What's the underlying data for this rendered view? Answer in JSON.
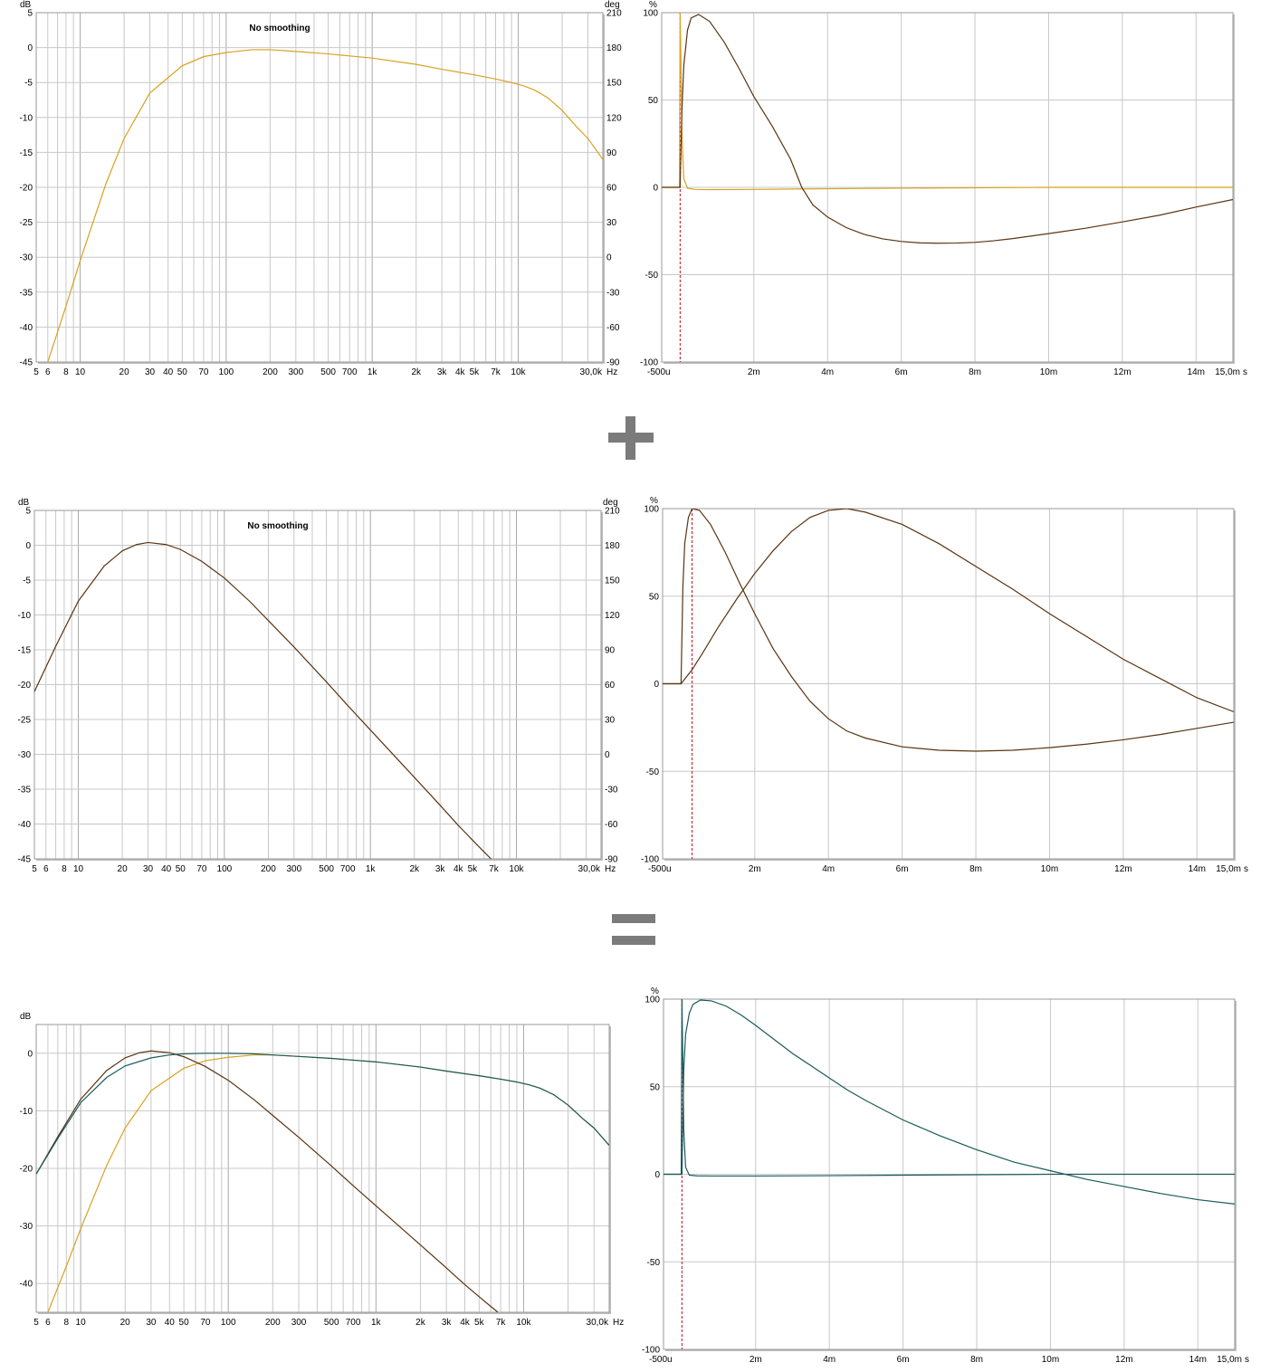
{
  "colors": {
    "gold": "#d8a21e",
    "brown": "#5a3412",
    "teal": "#1a5a5a",
    "marker": "#c0101a",
    "grid": "#c8c8c8",
    "operator": "#7b7b7b"
  },
  "operators": [
    "plus-sign",
    "equals-sign"
  ],
  "chart_data": [
    {
      "id": "freq-1",
      "type": "line",
      "xscale": "log",
      "overlay_text": "No smoothing",
      "xlabel_unit": "Hz",
      "ylabel_left": "dB",
      "ylabel_right": "deg",
      "xlim": [
        5,
        38000
      ],
      "ylim": [
        -45,
        5
      ],
      "y2lim": [
        -90,
        210
      ],
      "xticks": [
        "5",
        "6",
        "8",
        "10",
        "20",
        "30",
        "40",
        "50",
        "70",
        "100",
        "200",
        "300",
        "500",
        "700",
        "1k",
        "2k",
        "3k",
        "4k",
        "5k",
        "7k",
        "10k",
        "30,0k"
      ],
      "yticks": [
        "5",
        "0",
        "-5",
        "-10",
        "-15",
        "-20",
        "-25",
        "-30",
        "-35",
        "-40",
        "-45"
      ],
      "y2ticks": [
        "210",
        "180",
        "150",
        "120",
        "90",
        "60",
        "30",
        "0",
        "-30",
        "-60",
        "-90"
      ],
      "series": [
        {
          "color": "gold",
          "x": [
            6,
            8,
            10,
            15,
            20,
            30,
            50,
            70,
            100,
            150,
            200,
            300,
            500,
            1000,
            2000,
            3000,
            5000,
            7000,
            9000,
            11000,
            13000,
            16000,
            20000,
            25000,
            30000,
            38000
          ],
          "y": [
            -45,
            -37,
            -30.5,
            -19.5,
            -13,
            -6.5,
            -2.6,
            -1.3,
            -0.7,
            -0.3,
            -0.3,
            -0.55,
            -0.9,
            -1.5,
            -2.4,
            -3.1,
            -3.9,
            -4.5,
            -5.0,
            -5.5,
            -6.1,
            -7.2,
            -9,
            -11.3,
            -13,
            -16
          ]
        }
      ]
    },
    {
      "id": "impulse-1",
      "type": "line",
      "xlabel_unit": "s",
      "ylabel": "%",
      "xlim": [
        -0.5,
        15.0
      ],
      "ylim": [
        -100,
        100
      ],
      "xticks": [
        "-500u",
        "2m",
        "4m",
        "6m",
        "8m",
        "10m",
        "12m",
        "14m",
        "15,0m"
      ],
      "yticks": [
        "100",
        "50",
        "0",
        "-50",
        "-100"
      ],
      "marker_ms": 0,
      "series": [
        {
          "color": "gold",
          "x": [
            -0.5,
            -0.02,
            0,
            0.02,
            0.05,
            0.1,
            0.2,
            0.4,
            0.8,
            2,
            4,
            6,
            10,
            15
          ],
          "y": [
            0,
            0,
            100,
            75,
            30,
            5,
            -0.5,
            -1.2,
            -1.3,
            -1.2,
            -0.8,
            -0.5,
            0,
            0
          ]
        },
        {
          "color": "brown",
          "x": [
            -0.5,
            0,
            0.05,
            0.1,
            0.2,
            0.3,
            0.5,
            0.8,
            1.2,
            1.6,
            2,
            2.5,
            3,
            3.3,
            3.6,
            4,
            4.5,
            5,
            5.5,
            6,
            6.5,
            7,
            7.5,
            8,
            8.5,
            9,
            10,
            11,
            12,
            13,
            14,
            15
          ],
          "y": [
            0,
            0,
            45,
            70,
            90,
            97,
            99,
            95,
            83,
            68,
            52,
            35,
            16,
            0,
            -10,
            -17,
            -23,
            -27,
            -29.5,
            -31,
            -31.8,
            -32,
            -31.9,
            -31.5,
            -30.6,
            -29.4,
            -26.5,
            -23.4,
            -19.8,
            -16,
            -11.3,
            -7
          ]
        }
      ]
    },
    {
      "id": "freq-2",
      "type": "line",
      "xscale": "log",
      "overlay_text": "No smoothing",
      "xlabel_unit": "Hz",
      "ylabel_left": "dB",
      "ylabel_right": "deg",
      "xlim": [
        5,
        38000
      ],
      "ylim": [
        -45,
        5
      ],
      "y2lim": [
        -90,
        210
      ],
      "xticks": [
        "5",
        "6",
        "8",
        "10",
        "20",
        "30",
        "40",
        "50",
        "70",
        "100",
        "200",
        "300",
        "500",
        "700",
        "1k",
        "2k",
        "3k",
        "4k",
        "5k",
        "7k",
        "10k",
        "30,0k"
      ],
      "yticks": [
        "5",
        "0",
        "-5",
        "-10",
        "-15",
        "-20",
        "-25",
        "-30",
        "-35",
        "-40",
        "-45"
      ],
      "y2ticks": [
        "210",
        "180",
        "150",
        "120",
        "90",
        "60",
        "30",
        "0",
        "-30",
        "-60",
        "-90"
      ],
      "series": [
        {
          "color": "brown",
          "x": [
            5,
            7,
            10,
            15,
            20,
            25,
            30,
            40,
            50,
            70,
            100,
            150,
            200,
            300,
            500,
            700,
            1000,
            2000,
            3000,
            4000,
            5000,
            6000,
            6700
          ],
          "y": [
            -21,
            -14.5,
            -8,
            -3,
            -0.8,
            0.1,
            0.4,
            0.1,
            -0.6,
            -2.3,
            -4.7,
            -8.1,
            -10.8,
            -14.6,
            -19.6,
            -23,
            -26.5,
            -33.3,
            -37.3,
            -40.2,
            -42.3,
            -44,
            -45
          ]
        }
      ]
    },
    {
      "id": "impulse-2",
      "type": "line",
      "xlabel_unit": "s",
      "ylabel": "%",
      "xlim": [
        -0.5,
        15.0
      ],
      "ylim": [
        -100,
        100
      ],
      "xticks": [
        "-500u",
        "2m",
        "4m",
        "6m",
        "8m",
        "10m",
        "12m",
        "14m",
        "15,0m"
      ],
      "yticks": [
        "100",
        "50",
        "0",
        "-50",
        "-100"
      ],
      "marker_ms": 0.3,
      "series": [
        {
          "color": "brown",
          "x": [
            -0.5,
            0,
            0.05,
            0.1,
            0.2,
            0.3,
            0.5,
            0.8,
            1.2,
            1.6,
            2,
            2.5,
            3,
            3.5,
            4,
            4.5,
            5,
            6,
            7,
            8,
            9,
            10,
            11,
            12,
            13,
            14,
            15
          ],
          "y": [
            0,
            0,
            55,
            80,
            95,
            100,
            99,
            91,
            75,
            57,
            40,
            20,
            4,
            -10,
            -20,
            -27,
            -31,
            -36,
            -38,
            -38.5,
            -38,
            -36.5,
            -34.5,
            -32,
            -29,
            -25.5,
            -22
          ]
        },
        {
          "color": "brown",
          "x": [
            -0.5,
            0,
            0.3,
            0.6,
            1,
            1.5,
            2,
            2.5,
            3,
            3.5,
            4,
            4.5,
            5,
            6,
            7,
            8,
            9,
            10,
            11,
            12,
            13,
            14,
            15
          ],
          "y": [
            0,
            0,
            8,
            18,
            32,
            48,
            63,
            76,
            87,
            95,
            99,
            100,
            98,
            91,
            80,
            67,
            54,
            40,
            27,
            14,
            3,
            -8,
            -16
          ]
        }
      ]
    },
    {
      "id": "freq-3",
      "type": "line",
      "xscale": "log",
      "xlabel_unit": "Hz",
      "ylabel_left": "dB",
      "xlim": [
        5,
        38000
      ],
      "ylim": [
        -45,
        5
      ],
      "xticks": [
        "5",
        "6",
        "8",
        "10",
        "20",
        "30",
        "40",
        "50",
        "70",
        "100",
        "200",
        "300",
        "500",
        "700",
        "1k",
        "2k",
        "3k",
        "4k",
        "5k",
        "7k",
        "10k",
        "30,0k"
      ],
      "yticks": [
        "0",
        "-10",
        "-20",
        "-30",
        "-40"
      ],
      "series": [
        {
          "color": "gold",
          "x": [
            6,
            8,
            10,
            15,
            20,
            30,
            50,
            70,
            100,
            150,
            200,
            300,
            500,
            1000,
            2000,
            3000,
            5000,
            7000,
            9000,
            11000,
            13000,
            16000,
            20000,
            25000,
            30000,
            38000
          ],
          "y": [
            -45,
            -37,
            -30.5,
            -19.5,
            -13,
            -6.5,
            -2.6,
            -1.3,
            -0.7,
            -0.3,
            -0.3,
            -0.55,
            -0.9,
            -1.5,
            -2.4,
            -3.1,
            -3.9,
            -4.5,
            -5.0,
            -5.5,
            -6.1,
            -7.2,
            -9,
            -11.3,
            -13,
            -16
          ]
        },
        {
          "color": "brown",
          "x": [
            5,
            7,
            10,
            15,
            20,
            25,
            30,
            40,
            50,
            70,
            100,
            150,
            200,
            300,
            500,
            700,
            1000,
            2000,
            3000,
            4000,
            5000,
            6000,
            6700
          ],
          "y": [
            -21,
            -14.5,
            -8,
            -3,
            -0.8,
            0.1,
            0.4,
            0.1,
            -0.6,
            -2.3,
            -4.7,
            -8.1,
            -10.8,
            -14.6,
            -19.6,
            -23,
            -26.5,
            -33.3,
            -37.3,
            -40.2,
            -42.3,
            -44,
            -45
          ]
        },
        {
          "color": "teal",
          "x": [
            5,
            7,
            10,
            15,
            20,
            30,
            40,
            50,
            70,
            100,
            150,
            200,
            300,
            500,
            1000,
            2000,
            3000,
            5000,
            7000,
            9000,
            11000,
            13000,
            16000,
            20000,
            25000,
            30000,
            38000
          ],
          "y": [
            -21,
            -14.8,
            -8.6,
            -4.2,
            -2.2,
            -0.8,
            -0.3,
            -0.1,
            0,
            0,
            -0.1,
            -0.3,
            -0.55,
            -0.9,
            -1.5,
            -2.4,
            -3.1,
            -3.9,
            -4.5,
            -5.0,
            -5.5,
            -6.1,
            -7.2,
            -9,
            -11.3,
            -13,
            -16
          ]
        }
      ]
    },
    {
      "id": "impulse-3",
      "type": "line",
      "xlabel_unit": "s",
      "ylabel": "%",
      "xlim": [
        -0.5,
        15.0
      ],
      "ylim": [
        -100,
        100
      ],
      "xticks": [
        "-500u",
        "2m",
        "4m",
        "6m",
        "8m",
        "10m",
        "12m",
        "14m",
        "15,0m"
      ],
      "yticks": [
        "100",
        "50",
        "0",
        "-50",
        "-100"
      ],
      "marker_ms": 0,
      "series": [
        {
          "color": "teal",
          "x": [
            -0.5,
            -0.02,
            0,
            0.02,
            0.05,
            0.1,
            0.2,
            0.4,
            0.8,
            2,
            4,
            6,
            10,
            15
          ],
          "y": [
            0,
            0,
            100,
            70,
            25,
            4,
            -0.5,
            -0.9,
            -1,
            -1,
            -0.8,
            -0.5,
            0,
            0
          ]
        },
        {
          "color": "teal",
          "x": [
            -0.5,
            0,
            0.05,
            0.1,
            0.2,
            0.3,
            0.5,
            0.8,
            1.2,
            1.6,
            2,
            2.5,
            3,
            3.5,
            4,
            4.5,
            5,
            6,
            7,
            8,
            9,
            10,
            11,
            12,
            13,
            14,
            15
          ],
          "y": [
            0,
            0,
            60,
            80,
            92,
            97,
            99.5,
            99,
            96,
            91,
            85,
            77,
            69,
            62,
            55,
            48,
            42,
            31,
            22,
            14,
            7,
            2,
            -3,
            -7,
            -11,
            -14.5,
            -17
          ]
        }
      ]
    }
  ]
}
